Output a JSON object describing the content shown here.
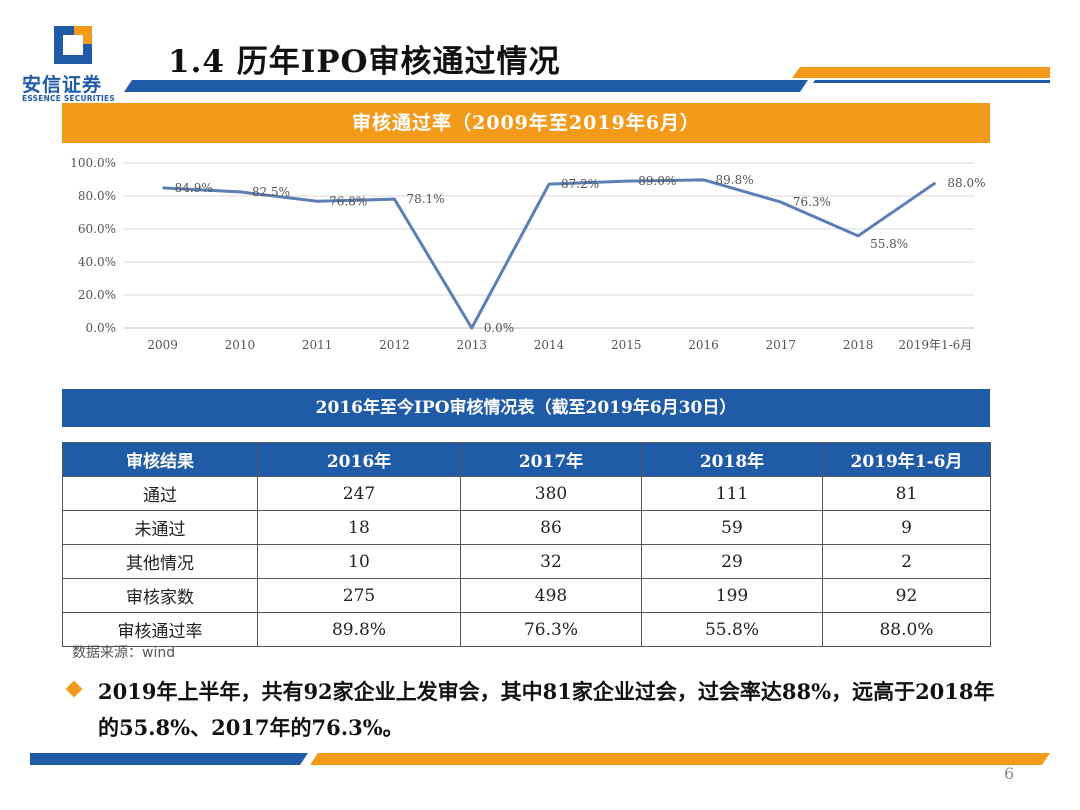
{
  "brand": {
    "name_cn": "安信证券",
    "name_en": "ESSENCE SECURITIES",
    "logo_color": "#1f5ba6",
    "accent_color": "#f39a1b"
  },
  "title": "1.4 历年IPO审核通过情况",
  "chart_section": {
    "header": "审核通过率（2009年至2019年6月）"
  },
  "chart_data": {
    "type": "line",
    "title": "",
    "categories": [
      "2009",
      "2010",
      "2011",
      "2012",
      "2013",
      "2014",
      "2015",
      "2016",
      "2017",
      "2018",
      "2019年1-6月"
    ],
    "series": [
      {
        "values": [
          84.9,
          82.5,
          76.8,
          78.1,
          0.0,
          87.2,
          89.0,
          89.8,
          76.3,
          55.8,
          88.0
        ]
      }
    ],
    "data_labels": [
      "84.9%",
      "82.5%",
      "76.8%",
      "78.1%",
      "0.0%",
      "87.2%",
      "89.0%",
      "89.8%",
      "76.3%",
      "55.8%",
      "88.0%"
    ],
    "ylim": [
      0,
      100
    ],
    "yticks": [
      "0.0%",
      "20.0%",
      "40.0%",
      "60.0%",
      "80.0%",
      "100.0%"
    ],
    "grid": true,
    "line_color": "#5b7fb5"
  },
  "table_section": {
    "header": "2016年至今IPO审核情况表（截至2019年6月30日）",
    "columns": [
      "审核结果",
      "2016年",
      "2017年",
      "2018年",
      "2019年1-6月"
    ],
    "rows": [
      [
        "通过",
        "247",
        "380",
        "111",
        "81"
      ],
      [
        "未通过",
        "18",
        "86",
        "59",
        "9"
      ],
      [
        "其他情况",
        "10",
        "32",
        "29",
        "2"
      ],
      [
        "审核家数",
        "275",
        "498",
        "199",
        "92"
      ],
      [
        "审核通过率",
        "89.8%",
        "76.3%",
        "55.8%",
        "88.0%"
      ]
    ]
  },
  "source": "数据来源：wind",
  "summary": "2019年上半年，共有92家企业上发审会，其中81家企业过会，过会率达88%，远高于2018年的55.8%、2017年的76.3%。",
  "page_number": "6"
}
